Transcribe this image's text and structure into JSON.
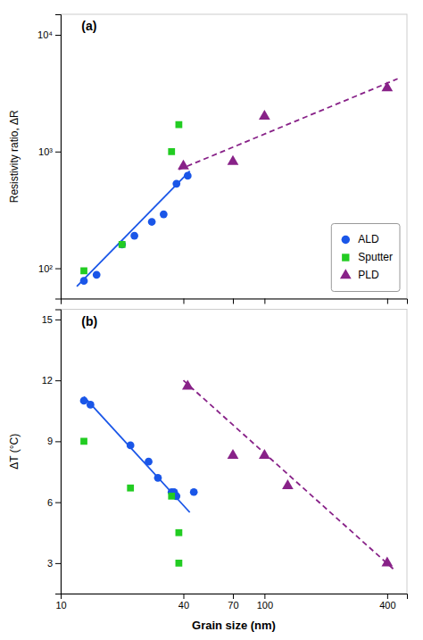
{
  "chart_data": [
    {
      "type": "scatter",
      "ylabel": "Resistivity ratio, ΔR",
      "annotations": [
        "(a)"
      ],
      "log": true,
      "xlim": [
        10,
        500
      ],
      "ylim": [
        55,
        15000
      ],
      "xticks": [
        10,
        40,
        70,
        100,
        400
      ],
      "yticks": [
        {
          "value": 100,
          "label": "10²"
        },
        {
          "value": 1000,
          "label": "10³"
        },
        {
          "value": 10000,
          "label": "10⁴"
        }
      ],
      "tick_labels": "y",
      "legend": "lower right",
      "series": [
        {
          "type": "line",
          "line_style": "solid",
          "color": "#1a56e8",
          "x": [
            12,
            43
          ],
          "values": [
            70,
            680
          ]
        },
        {
          "type": "line",
          "line_style": "dashed",
          "color": "#882288",
          "x": [
            38,
            450
          ],
          "values": [
            700,
            4200
          ]
        },
        {
          "name": "ALD",
          "marker": "circle",
          "color": "#1a56e8",
          "x": [
            13,
            15,
            20,
            23,
            28,
            32,
            37,
            42
          ],
          "values": [
            78,
            88,
            160,
            190,
            250,
            290,
            530,
            620
          ]
        },
        {
          "name": "Sputter",
          "marker": "square",
          "color": "#22cc22",
          "x": [
            13,
            20,
            35,
            38
          ],
          "values": [
            95,
            160,
            1000,
            1700
          ]
        },
        {
          "name": "PLD",
          "marker": "triangle",
          "color": "#882288",
          "x": [
            40,
            70,
            100,
            400
          ],
          "values": [
            750,
            820,
            2000,
            3500
          ]
        }
      ]
    },
    {
      "type": "scatter",
      "xlabel": "Grain size (nm)",
      "ylabel": "ΔT (°C)",
      "annotations": [
        "(b)"
      ],
      "log": "x",
      "xlim": [
        10,
        500
      ],
      "ylim": [
        1.5,
        15.5
      ],
      "xticks": [
        10,
        40,
        70,
        100,
        400
      ],
      "yticks": [
        3,
        6,
        9,
        12,
        15
      ],
      "series": [
        {
          "type": "line",
          "line_style": "solid",
          "color": "#1a56e8",
          "x": [
            13,
            43
          ],
          "values": [
            11.2,
            5.5
          ]
        },
        {
          "type": "line",
          "line_style": "dashed",
          "color": "#882288",
          "x": [
            40,
            430
          ],
          "values": [
            12.0,
            2.7
          ]
        },
        {
          "marker": "circle",
          "color": "#1a56e8",
          "x": [
            13,
            14,
            22,
            27,
            30,
            35,
            36,
            37,
            45
          ],
          "values": [
            11.0,
            10.8,
            8.8,
            8.0,
            7.2,
            6.5,
            6.5,
            6.3,
            6.5
          ]
        },
        {
          "marker": "square",
          "color": "#22cc22",
          "x": [
            13,
            22,
            35,
            38,
            38
          ],
          "values": [
            9.0,
            6.7,
            6.3,
            4.5,
            3.0
          ]
        },
        {
          "marker": "triangle",
          "color": "#882288",
          "x": [
            42,
            70,
            100,
            130,
            400
          ],
          "values": [
            11.7,
            8.3,
            8.3,
            6.8,
            3.0
          ]
        }
      ]
    }
  ]
}
